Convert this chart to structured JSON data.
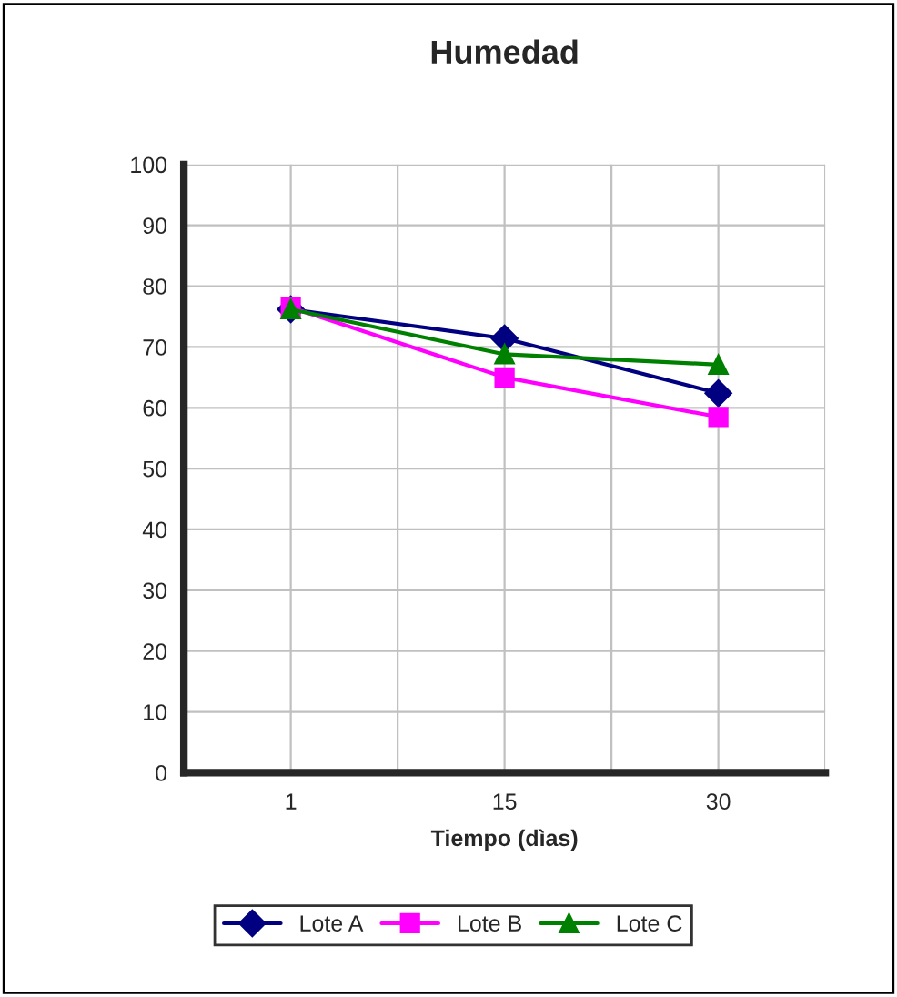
{
  "chart_data": {
    "type": "line",
    "title": "Humedad",
    "xlabel": "Tiempo (dìas)",
    "categories": [
      "1",
      "15",
      "30"
    ],
    "series": [
      {
        "name": "Lote A",
        "color": "#000080",
        "marker": "diamond",
        "values": [
          76.2,
          71.4,
          62.4
        ]
      },
      {
        "name": "Lote B",
        "color": "#ff00ff",
        "marker": "square",
        "values": [
          76.5,
          65.0,
          58.5
        ]
      },
      {
        "name": "Lote C",
        "color": "#008000",
        "marker": "triangle",
        "values": [
          76.2,
          68.8,
          67.1
        ]
      }
    ],
    "ylim": [
      0,
      100
    ],
    "yticks": [
      0,
      10,
      20,
      30,
      40,
      50,
      60,
      70,
      80,
      90,
      100
    ],
    "grid": true,
    "legend": "bottom"
  }
}
